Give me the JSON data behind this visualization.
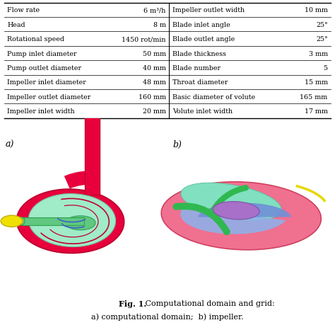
{
  "table_left": [
    [
      "Flow rate",
      "6 m³/h"
    ],
    [
      "Head",
      "8 m"
    ],
    [
      "Rotational speed",
      "1450 rot/min"
    ],
    [
      "Pump inlet diameter",
      "50 mm"
    ],
    [
      "Pump outlet diameter",
      "40 mm"
    ],
    [
      "Impeller inlet diameter",
      "48 mm"
    ],
    [
      "Impeller outlet diameter",
      "160 mm"
    ],
    [
      "Impeller inlet width",
      "20 mm"
    ]
  ],
  "table_right": [
    [
      "Impeller outlet width",
      "10 mm"
    ],
    [
      "Blade inlet angle",
      "25°"
    ],
    [
      "Blade outlet angle",
      "25°"
    ],
    [
      "Blade thickness",
      "3 mm"
    ],
    [
      "Blade number",
      "5"
    ],
    [
      "Throat diameter",
      "15 mm"
    ],
    [
      "Basic diameter of volute",
      "165 mm"
    ],
    [
      "Volute inlet width",
      "17 mm"
    ]
  ],
  "fig_caption_bold": "Fig. 1.",
  "fig_caption_normal": " Computational domain and grid:",
  "fig_caption_line2": "a) computational domain;  b) impeller.",
  "label_a": "a)",
  "label_b": "b)",
  "bg_color": "#ffffff",
  "font_size_table": 6.8,
  "font_size_label": 9.0,
  "font_size_caption": 8.0,
  "color_red": "#E8003C",
  "color_red_dark": "#C00030",
  "color_green_light": "#A0EBC8",
  "color_green_mid": "#60C880",
  "color_green_dark": "#30A050",
  "color_yellow": "#F0E000",
  "color_purple": "#C060D8",
  "color_blue_blade": "#4060C8",
  "color_pink": "#F07090",
  "color_pink_dark": "#D04060",
  "color_blue_light": "#90B0E8",
  "color_green_blade": "#30B850",
  "color_violet": "#A870C8",
  "color_cyan": "#80E0C0",
  "color_yellow2": "#E8D800"
}
